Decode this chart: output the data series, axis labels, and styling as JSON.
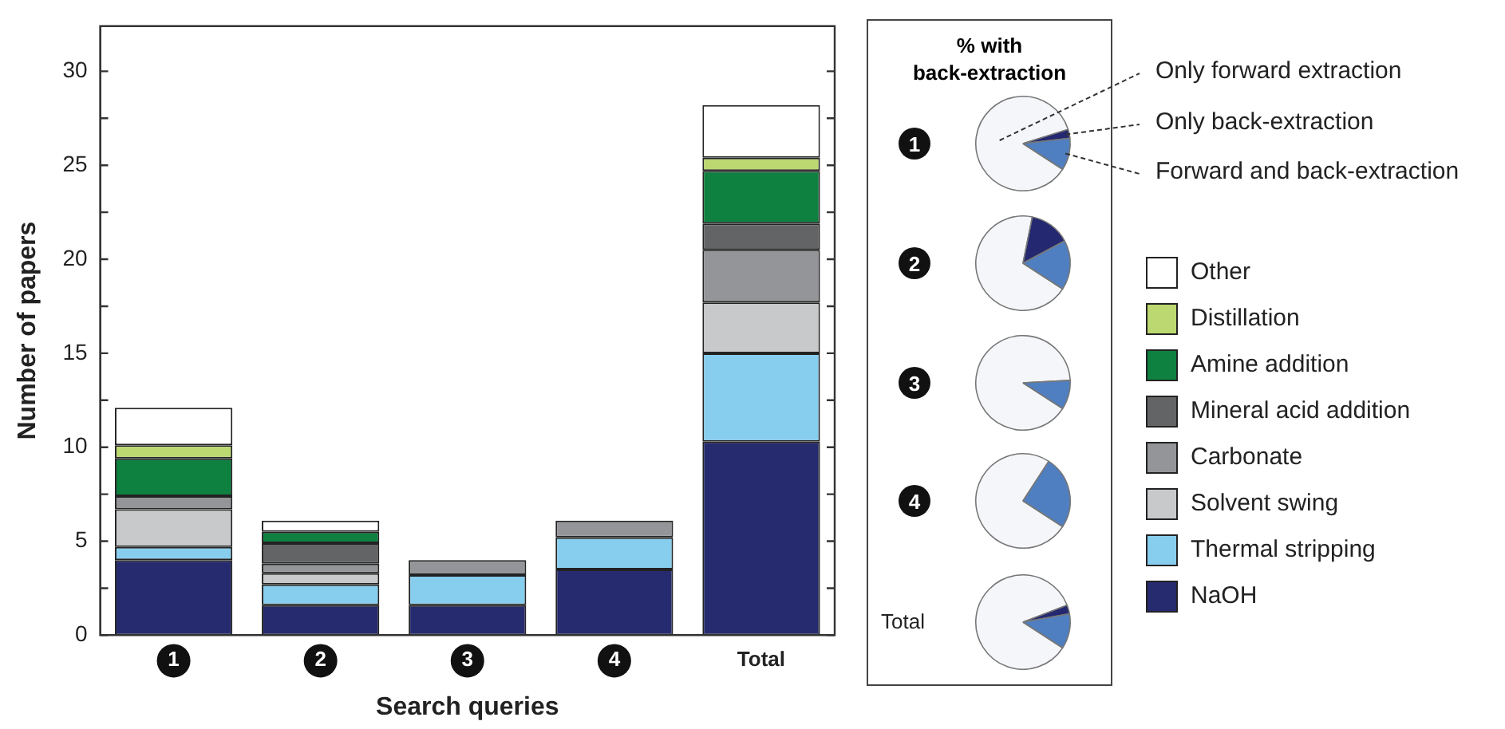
{
  "chart_data": [
    {
      "type": "bar",
      "stacked": true,
      "xlabel": "Search queries",
      "ylabel": "Number of papers",
      "categories": [
        "1",
        "2",
        "3",
        "4",
        "Total"
      ],
      "ylim": [
        0,
        32.4
      ],
      "yticks": [
        0,
        {
          "value": 2.5,
          "label": null
        },
        5,
        {
          "value": 7.5,
          "label": null
        },
        10,
        {
          "value": 12.5,
          "label": null
        },
        15,
        {
          "value": 17.5,
          "label": null
        },
        20,
        {
          "value": 22.5,
          "label": null
        },
        25,
        {
          "value": 27.5,
          "label": null
        },
        30
      ],
      "grid": false,
      "legend": "right",
      "series": [
        {
          "name": "NaOH",
          "color": "#262a6f",
          "values": [
            4.0,
            1.6,
            1.6,
            3.5,
            10.3
          ]
        },
        {
          "name": "Thermal stripping",
          "color": "#87cdee",
          "values": [
            0.7,
            1.1,
            1.6,
            1.7,
            4.7
          ]
        },
        {
          "name": "Solvent swing",
          "color": "#c8c9cb",
          "values": [
            2.0,
            0.6,
            null,
            null,
            2.7
          ]
        },
        {
          "name": "Carbonate",
          "color": "#939598",
          "values": [
            0.7,
            0.5,
            0.8,
            0.9,
            2.8
          ]
        },
        {
          "name": "Mineral acid addition",
          "color": "#636466",
          "values": [
            null,
            1.1,
            null,
            null,
            1.4
          ]
        },
        {
          "name": "Amine addition",
          "color": "#0e8040",
          "values": [
            2.0,
            0.6,
            null,
            null,
            2.8
          ]
        },
        {
          "name": "Distillation",
          "color": "#bcd870",
          "values": [
            0.7,
            null,
            null,
            null,
            0.7
          ]
        },
        {
          "name": "Other",
          "color": "#ffffff",
          "values": [
            2.0,
            0.6,
            null,
            null,
            2.8
          ]
        }
      ]
    },
    {
      "type": "pie",
      "title": "1",
      "annotations": [
        "% with back-extraction"
      ],
      "categories": [
        "Only forward extraction",
        "Only back-extraction",
        "Forward and back-extraction"
      ],
      "values": [
        86,
        3,
        11
      ],
      "colors": [
        "#f4f6f9",
        "#242870",
        "#4f7fc0"
      ]
    },
    {
      "type": "pie",
      "title": "2",
      "categories": [
        null,
        null,
        null
      ],
      "values": [
        69,
        14,
        17
      ],
      "colors": [
        "#f4f6f9",
        "#242870",
        "#4f7fc0"
      ]
    },
    {
      "type": "pie",
      "title": "3",
      "categories": [
        null,
        null,
        null
      ],
      "values": [
        90,
        0,
        10
      ],
      "colors": [
        "#f4f6f9",
        "#242870",
        "#4f7fc0"
      ]
    },
    {
      "type": "pie",
      "title": "4",
      "categories": [
        null,
        null,
        null
      ],
      "values": [
        75,
        0,
        25
      ],
      "colors": [
        "#f4f6f9",
        "#242870",
        "#4f7fc0"
      ]
    },
    {
      "type": "pie",
      "title": "Total",
      "categories": [
        null,
        null,
        null
      ],
      "values": [
        85,
        3,
        12
      ],
      "colors": [
        "#f4f6f9",
        "#242870",
        "#4f7fc0"
      ]
    }
  ]
}
